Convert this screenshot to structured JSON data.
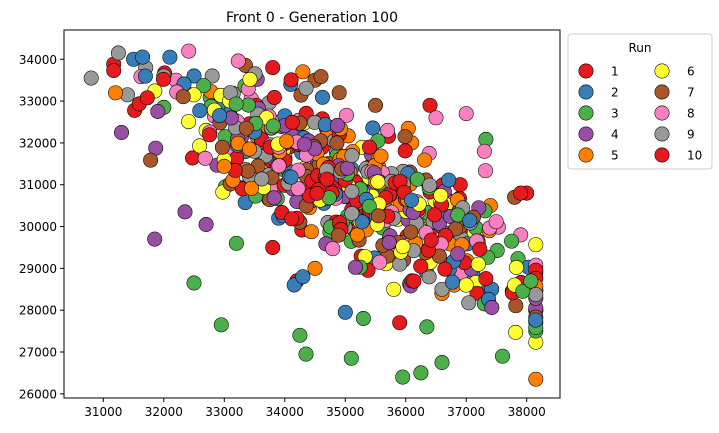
{
  "chart_data": {
    "type": "scatter",
    "title": "Front 0 -  Generation 100",
    "xlabel": "",
    "ylabel": "",
    "xlim": [
      30350,
      38550
    ],
    "ylim": [
      25900,
      34700
    ],
    "xticks": [
      31000,
      32000,
      33000,
      34000,
      35000,
      36000,
      37000,
      38000
    ],
    "yticks": [
      26000,
      27000,
      28000,
      29000,
      30000,
      31000,
      32000,
      33000,
      34000
    ],
    "grid": false,
    "legend": {
      "title": "Run",
      "placement": "outside-right",
      "columns": 2,
      "entries": [
        "1",
        "2",
        "3",
        "4",
        "5",
        "6",
        "7",
        "8",
        "9",
        "10"
      ]
    },
    "series_colors": {
      "1": "#e41a1c",
      "2": "#377eb8",
      "3": "#4daf4a",
      "4": "#984ea3",
      "5": "#ff7f00",
      "6": "#ffff33",
      "7": "#a65628",
      "8": "#f781bf",
      "9": "#999999",
      "10": "#e41a1c"
    },
    "generator": {
      "seed": 100,
      "points_per_series": 56,
      "center_x": 35000,
      "center_y": 31000,
      "slope": -0.85,
      "spread_along": 1900,
      "spread_across": 1150
    },
    "series": [
      {
        "name": "1",
        "anchors": [
          [
            33800,
            33800
          ],
          [
            34900,
            32200
          ],
          [
            35400,
            31900
          ],
          [
            35900,
            27700
          ],
          [
            36400,
            32900
          ],
          [
            36900,
            29900
          ],
          [
            37900,
            30800
          ],
          [
            34200,
            28700
          ]
        ]
      },
      {
        "name": "2",
        "anchors": [
          [
            31500,
            34000
          ],
          [
            32100,
            34050
          ],
          [
            32500,
            33600
          ],
          [
            34100,
            33400
          ],
          [
            33900,
            30200
          ],
          [
            34300,
            28800
          ],
          [
            35000,
            27950
          ],
          [
            32900,
            32900
          ]
        ]
      },
      {
        "name": "3",
        "anchors": [
          [
            32000,
            32850
          ],
          [
            32500,
            28650
          ],
          [
            32950,
            27650
          ],
          [
            33200,
            29600
          ],
          [
            34250,
            27400
          ],
          [
            34350,
            26950
          ],
          [
            35100,
            26850
          ],
          [
            35300,
            27800
          ],
          [
            35950,
            26400
          ],
          [
            36250,
            26500
          ],
          [
            36350,
            27600
          ],
          [
            36600,
            26750
          ],
          [
            37600,
            26900
          ],
          [
            37750,
            29650
          ],
          [
            37300,
            28150
          ]
        ]
      },
      {
        "name": "4",
        "anchors": [
          [
            31300,
            32250
          ],
          [
            31850,
            29700
          ],
          [
            32350,
            30350
          ],
          [
            32700,
            30050
          ],
          [
            31900,
            32750
          ],
          [
            33000,
            31600
          ],
          [
            34200,
            30600
          ]
        ]
      },
      {
        "name": "5",
        "anchors": [
          [
            33600,
            32300
          ],
          [
            34300,
            33700
          ],
          [
            34500,
            29000
          ],
          [
            35200,
            29800
          ],
          [
            36600,
            28400
          ],
          [
            36800,
            28600
          ],
          [
            37400,
            30500
          ]
        ]
      },
      {
        "name": "6",
        "anchors": [
          [
            32500,
            33150
          ],
          [
            32700,
            32300
          ],
          [
            33000,
            31600
          ],
          [
            33700,
            32600
          ],
          [
            35800,
            28500
          ],
          [
            37000,
            28600
          ],
          [
            37200,
            29100
          ],
          [
            37800,
            28600
          ],
          [
            38100,
            28700
          ]
        ]
      },
      {
        "name": "7",
        "anchors": [
          [
            33350,
            33850
          ],
          [
            34500,
            33500
          ],
          [
            34900,
            33200
          ],
          [
            35500,
            32900
          ],
          [
            36900,
            30000
          ],
          [
            37800,
            30700
          ]
        ]
      },
      {
        "name": "8",
        "anchors": [
          [
            32200,
            33500
          ],
          [
            33900,
            31900
          ],
          [
            35700,
            32300
          ],
          [
            36500,
            32600
          ],
          [
            37000,
            32700
          ],
          [
            37300,
            31800
          ],
          [
            37900,
            29800
          ],
          [
            36700,
            30600
          ]
        ]
      },
      {
        "name": "9",
        "anchors": [
          [
            30800,
            33550
          ],
          [
            31250,
            34150
          ],
          [
            31400,
            33150
          ],
          [
            31700,
            33800
          ],
          [
            32000,
            33600
          ],
          [
            32800,
            33600
          ],
          [
            33100,
            33200
          ],
          [
            33500,
            31800
          ],
          [
            35900,
            29100
          ],
          [
            36600,
            28500
          ]
        ]
      },
      {
        "name": "10",
        "anchors": [
          [
            33300,
            30900
          ],
          [
            33800,
            29500
          ],
          [
            34200,
            30200
          ],
          [
            35000,
            31100
          ],
          [
            35600,
            30700
          ],
          [
            36200,
            30400
          ],
          [
            36900,
            31000
          ],
          [
            38000,
            30800
          ]
        ]
      }
    ]
  }
}
